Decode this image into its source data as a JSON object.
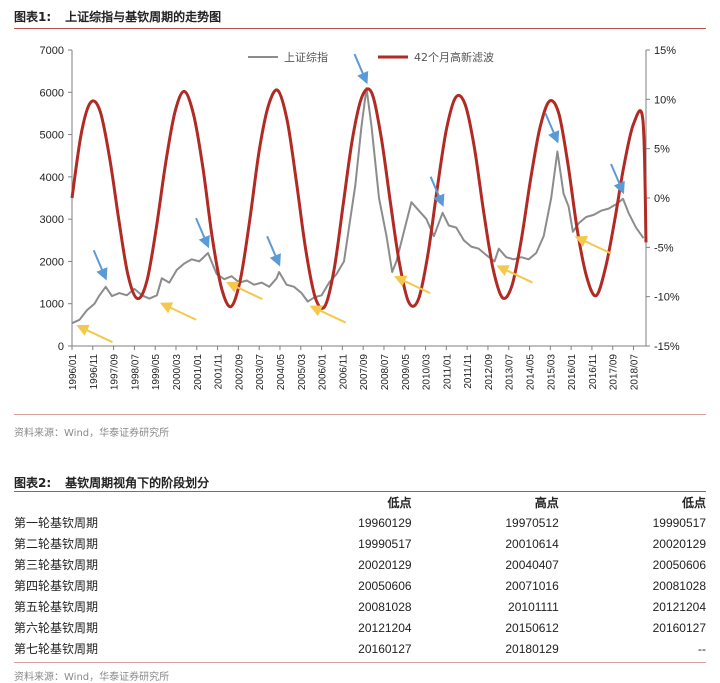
{
  "figure1": {
    "title_num": "图表1:",
    "title": "上证综指与基钦周期的走势图",
    "source": "资料来源：Wind，华泰证券研究所"
  },
  "figure2": {
    "title_num": "图表2:",
    "title": "基钦周期视角下的阶段划分",
    "columns": [
      "",
      "低点",
      "高点",
      "低点"
    ],
    "rows": [
      {
        "name": "第一轮基钦周期",
        "low1": "19960129",
        "high": "19970512",
        "low2": "19990517"
      },
      {
        "name": "第二轮基钦周期",
        "low1": "19990517",
        "high": "20010614",
        "low2": "20020129"
      },
      {
        "name": "第三轮基钦周期",
        "low1": "20020129",
        "high": "20040407",
        "low2": "20050606"
      },
      {
        "name": "第四轮基钦周期",
        "low1": "20050606",
        "high": "20071016",
        "low2": "20081028"
      },
      {
        "name": "第五轮基钦周期",
        "low1": "20081028",
        "high": "20101111",
        "low2": "20121204"
      },
      {
        "name": "第六轮基钦周期",
        "low1": "20121204",
        "high": "20150612",
        "low2": "20160127"
      },
      {
        "name": "第七轮基钦周期",
        "low1": "20160127",
        "high": "20180129",
        "low2": "--"
      }
    ],
    "source": "资料来源：Wind，华泰证券研究所"
  },
  "chart_data": {
    "type": "line",
    "legend_position": "top-center",
    "grid": false,
    "x_tick_labels": [
      "1996/01",
      "1996/11",
      "1997/09",
      "1998/07",
      "1999/05",
      "2000/03",
      "2001/01",
      "2001/11",
      "2002/09",
      "2003/07",
      "2004/05",
      "2005/03",
      "2006/01",
      "2006/11",
      "2007/09",
      "2008/07",
      "2009/05",
      "2010/03",
      "2011/01",
      "2011/11",
      "2012/09",
      "2013/07",
      "2014/05",
      "2015/03",
      "2016/01",
      "2016/11",
      "2017/09",
      "2018/07"
    ],
    "x_range": [
      1996.0,
      2019.0
    ],
    "y_left": {
      "range": [
        0,
        7000
      ],
      "ticks": [
        0,
        1000,
        2000,
        3000,
        4000,
        5000,
        6000,
        7000
      ],
      "tick_labels": [
        "0",
        "1000",
        "2000",
        "3000",
        "4000",
        "5000",
        "6000",
        "7000"
      ]
    },
    "y_right": {
      "range": [
        -15,
        15
      ],
      "ticks": [
        15,
        10,
        5,
        0,
        -5,
        -10,
        -15
      ],
      "tick_labels": [
        "15%",
        "10%",
        "5%",
        "0%",
        "-5%",
        "-10%",
        "-15%"
      ]
    },
    "series": [
      {
        "name": "上证综指",
        "axis": "left",
        "color": "#8c8c8c",
        "x": [
          1996.0,
          1996.3,
          1996.6,
          1996.9,
          1997.1,
          1997.35,
          1997.6,
          1997.9,
          1998.2,
          1998.5,
          1998.8,
          1999.1,
          1999.4,
          1999.6,
          1999.9,
          2000.2,
          2000.5,
          2000.8,
          2001.1,
          2001.45,
          2001.8,
          2002.1,
          2002.4,
          2002.7,
          2003.0,
          2003.3,
          2003.6,
          2003.9,
          2004.2,
          2004.3,
          2004.6,
          2004.9,
          2005.2,
          2005.45,
          2005.7,
          2006.0,
          2006.3,
          2006.6,
          2006.9,
          2007.1,
          2007.35,
          2007.6,
          2007.8,
          2008.0,
          2008.3,
          2008.6,
          2008.83,
          2009.0,
          2009.3,
          2009.6,
          2009.9,
          2010.2,
          2010.5,
          2010.85,
          2011.1,
          2011.4,
          2011.7,
          2012.0,
          2012.3,
          2012.6,
          2012.93,
          2013.1,
          2013.4,
          2013.7,
          2014.0,
          2014.3,
          2014.6,
          2014.9,
          2015.2,
          2015.45,
          2015.7,
          2015.9,
          2016.07,
          2016.3,
          2016.6,
          2016.9,
          2017.2,
          2017.5,
          2017.8,
          2018.08,
          2018.3,
          2018.6,
          2018.9
        ],
        "y": [
          540,
          620,
          850,
          1000,
          1200,
          1400,
          1180,
          1250,
          1200,
          1350,
          1200,
          1120,
          1200,
          1600,
          1500,
          1800,
          1950,
          2050,
          2000,
          2200,
          1700,
          1580,
          1650,
          1500,
          1550,
          1450,
          1500,
          1400,
          1600,
          1750,
          1450,
          1400,
          1250,
          1050,
          1150,
          1200,
          1500,
          1700,
          2000,
          2800,
          3800,
          5200,
          6100,
          5200,
          3500,
          2600,
          1750,
          2000,
          2700,
          3400,
          3200,
          3000,
          2600,
          3150,
          2850,
          2800,
          2500,
          2350,
          2300,
          2150,
          2000,
          2300,
          2100,
          2050,
          2100,
          2050,
          2200,
          2600,
          3500,
          4600,
          3600,
          3300,
          2700,
          2900,
          3050,
          3100,
          3200,
          3250,
          3350,
          3480,
          3150,
          2800,
          2550
        ]
      },
      {
        "name": "42个月高新滤波",
        "axis": "right",
        "color": "#b22a24",
        "x": [
          1996.0,
          1996.375,
          1996.75,
          1997.125,
          1997.5,
          1997.875,
          1998.25,
          1998.625,
          1999.0,
          1999.375,
          1999.75,
          2000.125,
          2000.5,
          2000.875,
          2001.25,
          2001.625,
          2002.0,
          2002.375,
          2002.75,
          2003.125,
          2003.5,
          2003.875,
          2004.25,
          2004.625,
          2005.0,
          2005.375,
          2005.75,
          2006.125,
          2006.5,
          2006.875,
          2007.25,
          2007.625,
          2008.0,
          2008.375,
          2008.75,
          2009.125,
          2009.5,
          2009.875,
          2010.25,
          2010.625,
          2011.0,
          2011.375,
          2011.75,
          2012.125,
          2012.5,
          2012.875,
          2013.25,
          2013.625,
          2014.0,
          2014.375,
          2014.75,
          2015.125,
          2015.5,
          2015.875,
          2016.25,
          2016.625,
          2017.0,
          2017.375,
          2017.75,
          2018.125,
          2018.5,
          2018.875,
          2019.0
        ],
        "y": [
          0,
          6.6,
          9.7,
          8.8,
          4.2,
          -2.2,
          -7.9,
          -10.2,
          -8.4,
          -3.1,
          3.5,
          8.7,
          10.8,
          8.4,
          3.0,
          -4.1,
          -9.2,
          -11.0,
          -8.2,
          -2.2,
          4.8,
          9.4,
          10.9,
          7.8,
          1.5,
          -5.4,
          -10.1,
          -11.0,
          -7.3,
          -0.5,
          6.2,
          10.3,
          10.7,
          6.4,
          -0.3,
          -6.7,
          -10.6,
          -10.3,
          -5.9,
          0.8,
          6.9,
          10.2,
          9.5,
          5.1,
          -1.5,
          -7.2,
          -10.1,
          -8.9,
          -4.3,
          1.9,
          7.1,
          9.8,
          8.6,
          3.4,
          -3.3,
          -8.0,
          -9.9,
          -7.1,
          -2.2,
          3.4,
          7.5,
          7.9,
          -4.5
        ]
      }
    ],
    "annotations": {
      "arrow_colors": {
        "low": "#f4c84a",
        "high": "#5b9bd5"
      },
      "low_arrow_targets": [
        {
          "x": 1996.1,
          "y": 540
        },
        {
          "x": 1999.45,
          "y": 1070
        },
        {
          "x": 2002.1,
          "y": 1560
        },
        {
          "x": 2005.45,
          "y": 1000
        },
        {
          "x": 2008.83,
          "y": 1700
        },
        {
          "x": 2012.93,
          "y": 1950
        },
        {
          "x": 2016.07,
          "y": 2640
        }
      ],
      "high_arrow_targets": [
        {
          "x": 1997.35,
          "y": 1460
        },
        {
          "x": 2001.45,
          "y": 2220
        },
        {
          "x": 2004.3,
          "y": 1790
        },
        {
          "x": 2007.8,
          "y": 6100
        },
        {
          "x": 2010.85,
          "y": 3200
        },
        {
          "x": 2015.45,
          "y": 4700
        },
        {
          "x": 2018.08,
          "y": 3500
        }
      ]
    }
  }
}
